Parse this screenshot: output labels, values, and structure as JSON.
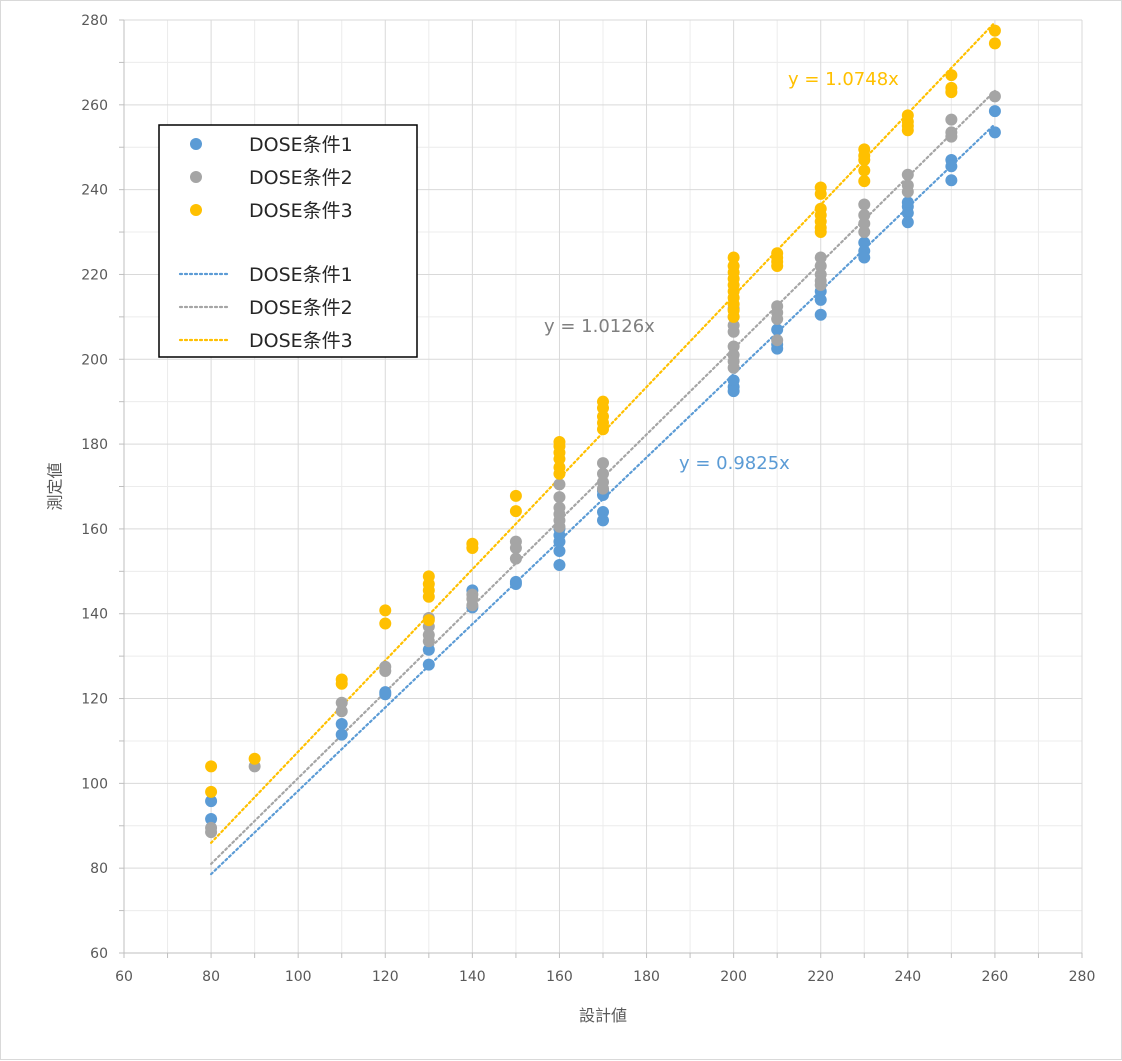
{
  "chart_data": {
    "type": "scatter",
    "xlabel": "設計値",
    "ylabel": "測定値",
    "xlim": [
      60,
      280
    ],
    "ylim": [
      60,
      280
    ],
    "xticks": [
      60,
      80,
      100,
      120,
      140,
      160,
      180,
      200,
      220,
      240,
      260,
      280
    ],
    "yticks": [
      60,
      80,
      100,
      120,
      140,
      160,
      180,
      200,
      220,
      240,
      260,
      280
    ],
    "grid": true,
    "legend_position": "top-left",
    "series": [
      {
        "name": "DOSE条件1",
        "color": "#5b9bd5",
        "points": [
          [
            80,
            95.8
          ],
          [
            80,
            91.6
          ],
          [
            110,
            114
          ],
          [
            110,
            111.5
          ],
          [
            120,
            121.5
          ],
          [
            120,
            121
          ],
          [
            130,
            131.5
          ],
          [
            130,
            128
          ],
          [
            140,
            145.5
          ],
          [
            140,
            141.5
          ],
          [
            150,
            147.5
          ],
          [
            150,
            147
          ],
          [
            160,
            160
          ],
          [
            160,
            158.5
          ],
          [
            160,
            157
          ],
          [
            160,
            154.8
          ],
          [
            160,
            151.5
          ],
          [
            170,
            169
          ],
          [
            170,
            168
          ],
          [
            170,
            164
          ],
          [
            170,
            162
          ],
          [
            200,
            195
          ],
          [
            200,
            193.5
          ],
          [
            200,
            192.5
          ],
          [
            210,
            207
          ],
          [
            210,
            203.5
          ],
          [
            210,
            202.5
          ],
          [
            220,
            216
          ],
          [
            220,
            214
          ],
          [
            220,
            210.5
          ],
          [
            230,
            227.5
          ],
          [
            230,
            225.5
          ],
          [
            230,
            224
          ],
          [
            240,
            237
          ],
          [
            240,
            236
          ],
          [
            240,
            234.5
          ],
          [
            240,
            232.3
          ],
          [
            250,
            247
          ],
          [
            250,
            245.5
          ],
          [
            250,
            242.2
          ],
          [
            260,
            258.5
          ],
          [
            260,
            253.5
          ]
        ]
      },
      {
        "name": "DOSE条件2",
        "color": "#a5a5a5",
        "points": [
          [
            80,
            89.5
          ],
          [
            80,
            88.5
          ],
          [
            90,
            104
          ],
          [
            110,
            119
          ],
          [
            110,
            117
          ],
          [
            120,
            127.5
          ],
          [
            120,
            126.5
          ],
          [
            130,
            139
          ],
          [
            130,
            137
          ],
          [
            130,
            135
          ],
          [
            130,
            133.5
          ],
          [
            140,
            144.5
          ],
          [
            140,
            143.5
          ],
          [
            140,
            142
          ],
          [
            150,
            157
          ],
          [
            150,
            155.5
          ],
          [
            150,
            153
          ],
          [
            160,
            170.5
          ],
          [
            160,
            167.5
          ],
          [
            160,
            165
          ],
          [
            160,
            163.5
          ],
          [
            160,
            162
          ],
          [
            160,
            160.5
          ],
          [
            170,
            175.5
          ],
          [
            170,
            173
          ],
          [
            170,
            171
          ],
          [
            170,
            169.5
          ],
          [
            200,
            212
          ],
          [
            200,
            210
          ],
          [
            200,
            208
          ],
          [
            200,
            206.5
          ],
          [
            200,
            203
          ],
          [
            200,
            201
          ],
          [
            200,
            199.5
          ],
          [
            200,
            198
          ],
          [
            210,
            212.5
          ],
          [
            210,
            211
          ],
          [
            210,
            209.5
          ],
          [
            210,
            204.5
          ],
          [
            220,
            224
          ],
          [
            220,
            222
          ],
          [
            220,
            220
          ],
          [
            220,
            218.5
          ],
          [
            220,
            217.5
          ],
          [
            230,
            236.5
          ],
          [
            230,
            234
          ],
          [
            230,
            232
          ],
          [
            230,
            230
          ],
          [
            240,
            243.5
          ],
          [
            240,
            241
          ],
          [
            240,
            239.5
          ],
          [
            250,
            256.5
          ],
          [
            250,
            253.5
          ],
          [
            250,
            252.5
          ],
          [
            260,
            262
          ]
        ]
      },
      {
        "name": "DOSE条件3",
        "color": "#ffc000",
        "points": [
          [
            80,
            104
          ],
          [
            80,
            98
          ],
          [
            90,
            105.8
          ],
          [
            110,
            124.5
          ],
          [
            110,
            123.5
          ],
          [
            120,
            140.8
          ],
          [
            120,
            137.7
          ],
          [
            130,
            148.8
          ],
          [
            130,
            147
          ],
          [
            130,
            145.5
          ],
          [
            130,
            144
          ],
          [
            130,
            138.5
          ],
          [
            140,
            156.5
          ],
          [
            140,
            155.5
          ],
          [
            150,
            167.8
          ],
          [
            150,
            164.2
          ],
          [
            160,
            180.5
          ],
          [
            160,
            179.5
          ],
          [
            160,
            178
          ],
          [
            160,
            176.5
          ],
          [
            160,
            174.5
          ],
          [
            160,
            173
          ],
          [
            170,
            190
          ],
          [
            170,
            188.5
          ],
          [
            170,
            186.5
          ],
          [
            170,
            185
          ],
          [
            170,
            183.5
          ],
          [
            200,
            224
          ],
          [
            200,
            222
          ],
          [
            200,
            220.5
          ],
          [
            200,
            219
          ],
          [
            200,
            217.5
          ],
          [
            200,
            216
          ],
          [
            200,
            214.5
          ],
          [
            200,
            213
          ],
          [
            200,
            211.5
          ],
          [
            200,
            210
          ],
          [
            210,
            225
          ],
          [
            210,
            224
          ],
          [
            210,
            223
          ],
          [
            210,
            222
          ],
          [
            220,
            240.5
          ],
          [
            220,
            239
          ],
          [
            220,
            235.5
          ],
          [
            220,
            234
          ],
          [
            220,
            232.5
          ],
          [
            220,
            231
          ],
          [
            220,
            230
          ],
          [
            230,
            249.5
          ],
          [
            230,
            248
          ],
          [
            230,
            247
          ],
          [
            230,
            244.5
          ],
          [
            230,
            242
          ],
          [
            240,
            257.5
          ],
          [
            240,
            256
          ],
          [
            240,
            255
          ],
          [
            240,
            254
          ],
          [
            250,
            267
          ],
          [
            250,
            264
          ],
          [
            250,
            263
          ],
          [
            260,
            277.5
          ],
          [
            260,
            274.5
          ]
        ]
      }
    ],
    "trendlines": [
      {
        "name": "DOSE条件1",
        "color": "#5b9bd5",
        "slope": 0.9825,
        "label": "y = 0.9825x"
      },
      {
        "name": "DOSE条件2",
        "color": "#a5a5a5",
        "slope": 1.0126,
        "label": "y = 1.0126x"
      },
      {
        "name": "DOSE条件3",
        "color": "#ffc000",
        "slope": 1.0748,
        "label": "y = 1.0748x"
      }
    ],
    "trendline_range": [
      80,
      260
    ]
  }
}
